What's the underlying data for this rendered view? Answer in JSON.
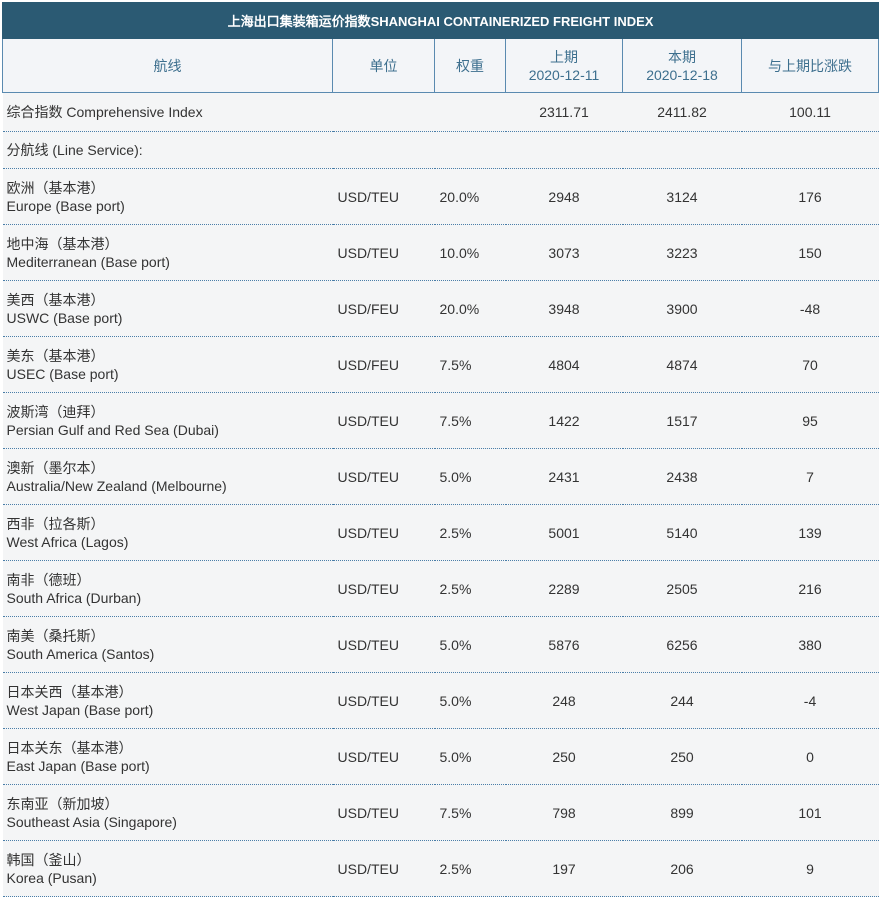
{
  "title": "上海出口集装箱运价指数SHANGHAI CONTAINERIZED FREIGHT INDEX",
  "headers": {
    "route": "航线",
    "unit": "单位",
    "weight": "权重",
    "prev_label": "上期",
    "prev_date": "2020-12-11",
    "curr_label": "本期",
    "curr_date": "2020-12-18",
    "change": "与上期比涨跌"
  },
  "comprehensive": {
    "label": "综合指数 Comprehensive Index",
    "prev": "2311.71",
    "curr": "2411.82",
    "change": "100.11"
  },
  "line_service_label": "分航线 (Line Service):",
  "routes": [
    {
      "cn": "欧洲（基本港）",
      "en": "Europe (Base port)",
      "unit": "USD/TEU",
      "weight": "20.0%",
      "prev": "2948",
      "curr": "3124",
      "change": "176"
    },
    {
      "cn": "地中海（基本港）",
      "en": "Mediterranean (Base port)",
      "unit": "USD/TEU",
      "weight": "10.0%",
      "prev": "3073",
      "curr": "3223",
      "change": "150"
    },
    {
      "cn": "美西（基本港）",
      "en": "USWC (Base port)",
      "unit": "USD/FEU",
      "weight": "20.0%",
      "prev": "3948",
      "curr": "3900",
      "change": "-48"
    },
    {
      "cn": "美东（基本港）",
      "en": "USEC (Base port)",
      "unit": "USD/FEU",
      "weight": "7.5%",
      "prev": "4804",
      "curr": "4874",
      "change": "70"
    },
    {
      "cn": "波斯湾（迪拜）",
      "en": "Persian Gulf and Red Sea (Dubai)",
      "unit": "USD/TEU",
      "weight": "7.5%",
      "prev": "1422",
      "curr": "1517",
      "change": "95"
    },
    {
      "cn": "澳新（墨尔本）",
      "en": "Australia/New Zealand (Melbourne)",
      "unit": "USD/TEU",
      "weight": "5.0%",
      "prev": "2431",
      "curr": "2438",
      "change": "7"
    },
    {
      "cn": "西非（拉各斯）",
      "en": "West Africa (Lagos)",
      "unit": "USD/TEU",
      "weight": "2.5%",
      "prev": "5001",
      "curr": "5140",
      "change": "139"
    },
    {
      "cn": "南非（德班）",
      "en": "South Africa (Durban)",
      "unit": "USD/TEU",
      "weight": "2.5%",
      "prev": "2289",
      "curr": "2505",
      "change": "216"
    },
    {
      "cn": "南美（桑托斯）",
      "en": "South America (Santos)",
      "unit": "USD/TEU",
      "weight": "5.0%",
      "prev": "5876",
      "curr": "6256",
      "change": "380"
    },
    {
      "cn": "日本关西（基本港）",
      "en": "West Japan (Base port)",
      "unit": "USD/TEU",
      "weight": "5.0%",
      "prev": "248",
      "curr": "244",
      "change": "-4"
    },
    {
      "cn": "日本关东（基本港）",
      "en": "East Japan (Base port)",
      "unit": "USD/TEU",
      "weight": "5.0%",
      "prev": "250",
      "curr": "250",
      "change": "0"
    },
    {
      "cn": "东南亚（新加坡）",
      "en": "Southeast Asia (Singapore)",
      "unit": "USD/TEU",
      "weight": "7.5%",
      "prev": "798",
      "curr": "899",
      "change": "101"
    },
    {
      "cn": "韩国（釜山）",
      "en": "Korea (Pusan)",
      "unit": "USD/TEU",
      "weight": "2.5%",
      "prev": "197",
      "curr": "206",
      "change": "9"
    }
  ]
}
